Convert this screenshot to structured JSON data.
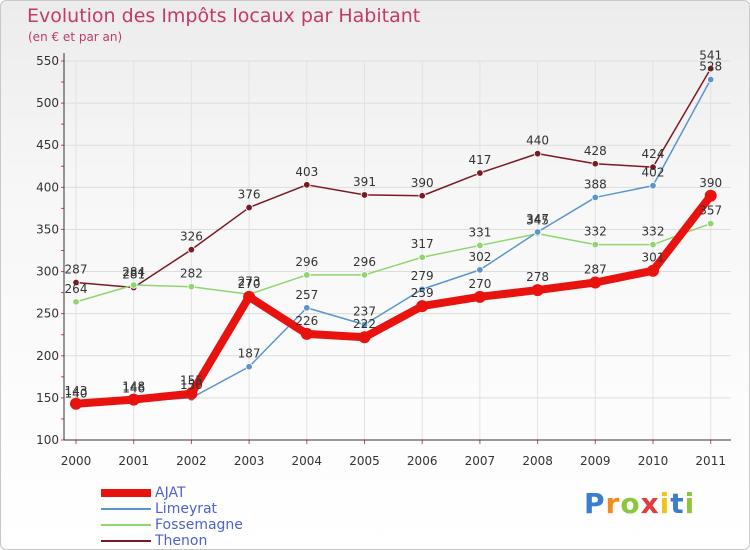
{
  "chart_data": {
    "type": "line",
    "title": "Evolution des Impôts locaux par Habitant",
    "subtitle": "(en € et par an)",
    "xlabel": "",
    "ylabel": "",
    "ylim": [
      100,
      550
    ],
    "yticks": [
      "100",
      "150",
      "200",
      "250",
      "300",
      "350",
      "400",
      "450",
      "500",
      "550"
    ],
    "categories": [
      "2000",
      "2001",
      "2002",
      "2003",
      "2004",
      "2005",
      "2006",
      "2007",
      "2008",
      "2009",
      "2010",
      "2011"
    ],
    "grid": true,
    "legend_position": "bottom-left",
    "series": [
      {
        "name": "Thenon",
        "color": "#7a1a24",
        "values": [
          287,
          281,
          326,
          376,
          403,
          391,
          390,
          417,
          440,
          428,
          424,
          541
        ],
        "labels": [
          "287",
          "281",
          "326",
          "376",
          "403",
          "391",
          "390",
          "417",
          "440",
          "428",
          "424",
          "541"
        ]
      },
      {
        "name": "Fossemagne",
        "color": "#8fd66e",
        "values": [
          264,
          284,
          282,
          273,
          296,
          296,
          317,
          331,
          345,
          332,
          332,
          357
        ],
        "labels": [
          "264",
          "284",
          "282",
          "273",
          "296",
          "296",
          "317",
          "331",
          "345",
          "332",
          "332",
          "357"
        ]
      },
      {
        "name": "Limeyrat",
        "color": "#5a96cc",
        "values": [
          140,
          146,
          150,
          187,
          257,
          237,
          279,
          302,
          347,
          388,
          402,
          528
        ],
        "labels": [
          "140",
          "146",
          "150",
          "187",
          "257",
          "237",
          "279",
          "302",
          "347",
          "388",
          "402",
          "528"
        ]
      },
      {
        "name": "AJAT",
        "color": "#e8120e",
        "values": [
          143,
          148,
          155,
          270,
          226,
          222,
          259,
          270,
          278,
          287,
          301,
          390
        ],
        "labels": [
          "143",
          "148",
          "155",
          "270",
          "226",
          "222",
          "259",
          "270",
          "278",
          "287",
          "301",
          "390"
        ]
      }
    ],
    "legend_order": [
      "AJAT",
      "Limeyrat",
      "Fossemagne",
      "Thenon"
    ]
  },
  "brand": {
    "letters": [
      "P",
      "r",
      "o",
      "x",
      "i",
      "t",
      "i"
    ],
    "colors": [
      "#3b7ed0",
      "#f08c1e",
      "#8cc63f",
      "#e23b3b",
      "#f0c419",
      "#3b7ed0",
      "#8cc63f"
    ]
  }
}
